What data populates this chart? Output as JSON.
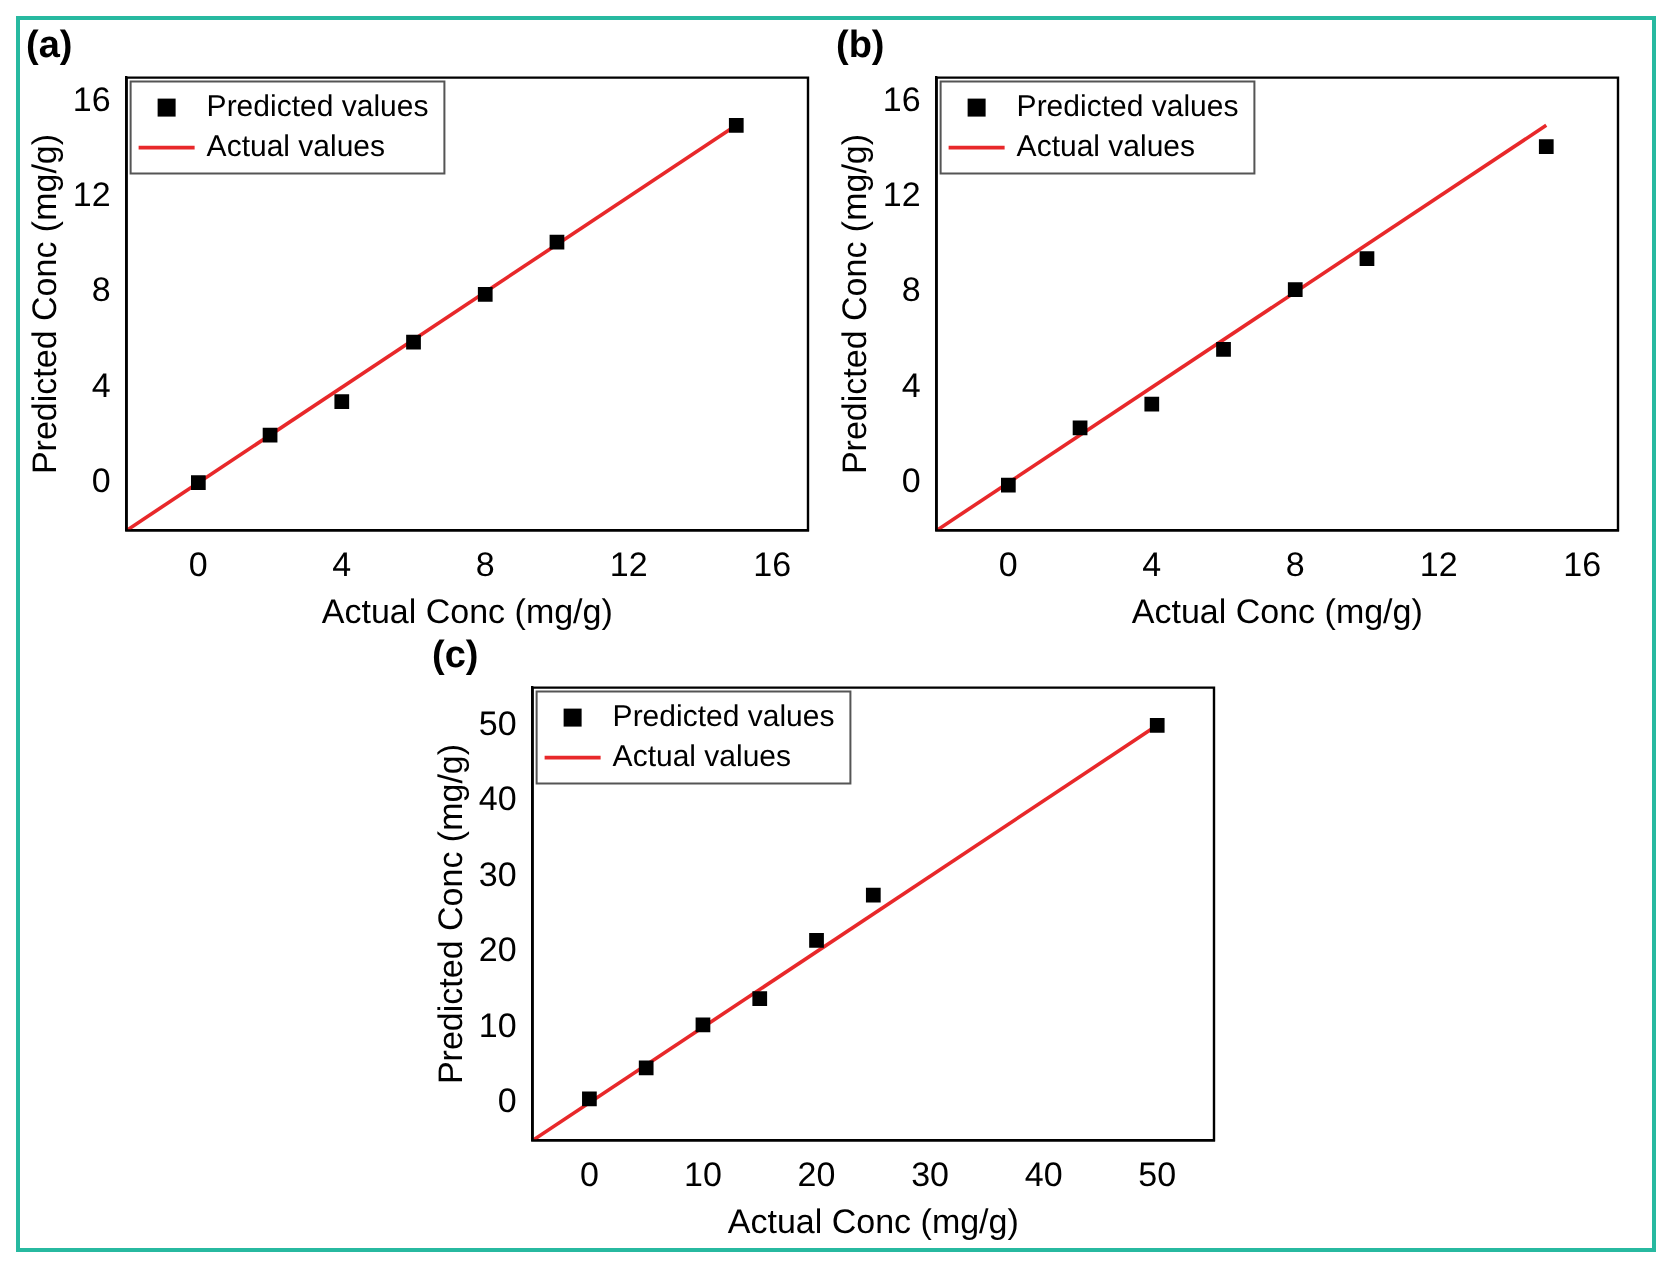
{
  "chart_data": [
    {
      "type": "scatter",
      "title": "(a)",
      "xlabel": "Actual Conc (mg/g)",
      "ylabel": "Predicted Conc (mg/g)",
      "xlim": [
        -2,
        17
      ],
      "ylim": [
        -2,
        17
      ],
      "xticks": [
        0,
        4,
        8,
        12,
        16
      ],
      "yticks": [
        0,
        4,
        8,
        12,
        16
      ],
      "grid": false,
      "legend": "top left",
      "series": [
        {
          "name": "Predicted values",
          "type": "scatter",
          "marker": "square",
          "color": "#000000",
          "x": [
            0,
            2,
            4,
            6,
            8,
            10,
            15
          ],
          "values": [
            0,
            2,
            3.4,
            5.9,
            7.9,
            10.1,
            15
          ]
        },
        {
          "name": "Actual values",
          "type": "line",
          "marker": "none",
          "line_style": "solid",
          "color": "#e8282a",
          "x": [
            -2,
            15
          ],
          "values": [
            -2,
            15
          ]
        }
      ]
    },
    {
      "type": "scatter",
      "title": "(b)",
      "xlabel": "Actual Conc (mg/g)",
      "ylabel": "Predicted Conc (mg/g)",
      "xlim": [
        -2,
        17
      ],
      "ylim": [
        -2,
        17
      ],
      "xticks": [
        0,
        4,
        8,
        12,
        16
      ],
      "yticks": [
        0,
        4,
        8,
        12,
        16
      ],
      "grid": false,
      "legend": "top left",
      "series": [
        {
          "name": "Predicted values",
          "type": "scatter",
          "marker": "square",
          "color": "#000000",
          "x": [
            0,
            2,
            4,
            6,
            8,
            10,
            15
          ],
          "values": [
            -0.1,
            2.3,
            3.3,
            5.6,
            8.1,
            9.4,
            14.1
          ]
        },
        {
          "name": "Actual values",
          "type": "line",
          "marker": "none",
          "line_style": "solid",
          "color": "#e8282a",
          "x": [
            -2,
            15
          ],
          "values": [
            -2,
            15
          ]
        }
      ]
    },
    {
      "type": "scatter",
      "title": "(c)",
      "xlabel": "Actual Conc (mg/g)",
      "ylabel": "Predicted Conc (mg/g)",
      "xlim": [
        -5,
        55
      ],
      "ylim": [
        -5,
        55
      ],
      "xticks": [
        0,
        10,
        20,
        30,
        40,
        50
      ],
      "yticks": [
        0,
        10,
        20,
        30,
        40,
        50
      ],
      "grid": false,
      "legend": "top left",
      "series": [
        {
          "name": "Predicted values",
          "type": "scatter",
          "marker": "square",
          "color": "#000000",
          "x": [
            0,
            5,
            10,
            15,
            20,
            25,
            50
          ],
          "values": [
            0.5,
            4.6,
            10.3,
            13.8,
            21.5,
            27.5,
            50
          ]
        },
        {
          "name": "Actual values",
          "type": "line",
          "marker": "none",
          "line_style": "solid",
          "color": "#e8282a",
          "x": [
            -5,
            50
          ],
          "values": [
            -5,
            50
          ]
        }
      ]
    }
  ]
}
